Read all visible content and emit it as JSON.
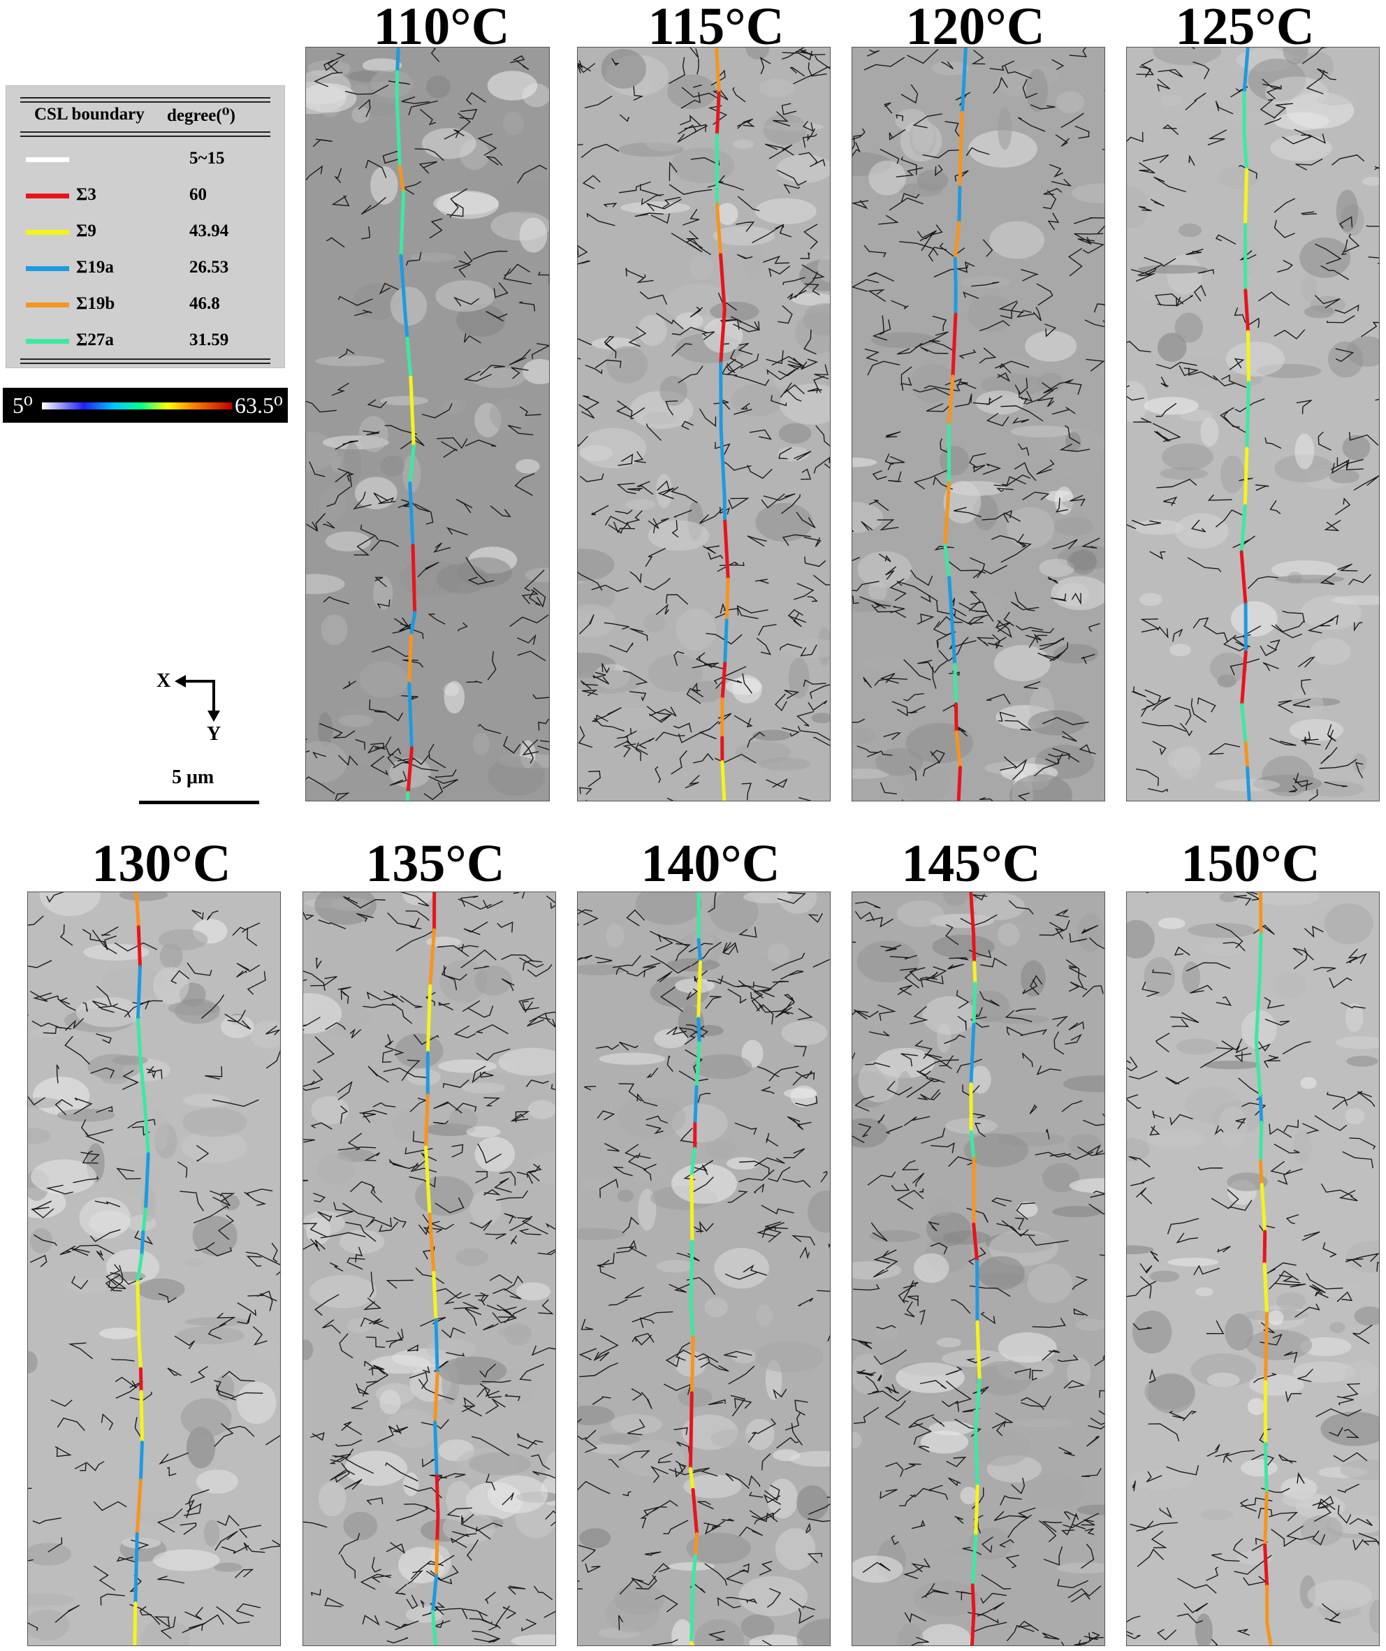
{
  "legend": {
    "header_boundary": "CSL boundary",
    "header_degree": "degree(⁰)",
    "rows": [
      {
        "name": "",
        "degree": "5~15",
        "color": "#ffffff"
      },
      {
        "name": "Σ3",
        "degree": "60",
        "color": "#e8141c"
      },
      {
        "name": "Σ9",
        "degree": "43.94",
        "color": "#f4f41c"
      },
      {
        "name": "Σ19a",
        "degree": "26.53",
        "color": "#1e9ae0"
      },
      {
        "name": "Σ19b",
        "degree": "46.8",
        "color": "#f7941d"
      },
      {
        "name": "Σ27a",
        "degree": "31.59",
        "color": "#3ee8a0"
      }
    ]
  },
  "colorbar": {
    "min_label": "5⁰",
    "max_label": "63.5⁰"
  },
  "axes": {
    "x": "X",
    "y": "Y"
  },
  "scale_bar": {
    "label": "5 μm"
  },
  "panels": [
    {
      "label": "110°C",
      "shade": "#9a9a9a",
      "density": 0.55
    },
    {
      "label": "115°C",
      "shade": "#b4b4b4",
      "density": 1.0
    },
    {
      "label": "120°C",
      "shade": "#a8a8a8",
      "density": 0.9
    },
    {
      "label": "125°C",
      "shade": "#bcbcbc",
      "density": 0.6
    },
    {
      "label": "130°C",
      "shade": "#bdbdbd",
      "density": 0.6
    },
    {
      "label": "135°C",
      "shade": "#b6b6b6",
      "density": 1.0
    },
    {
      "label": "140°C",
      "shade": "#b0b0b0",
      "density": 0.8
    },
    {
      "label": "145°C",
      "shade": "#ababab",
      "density": 0.85
    },
    {
      "label": "150°C",
      "shade": "#bfbfbf",
      "density": 0.6
    }
  ]
}
